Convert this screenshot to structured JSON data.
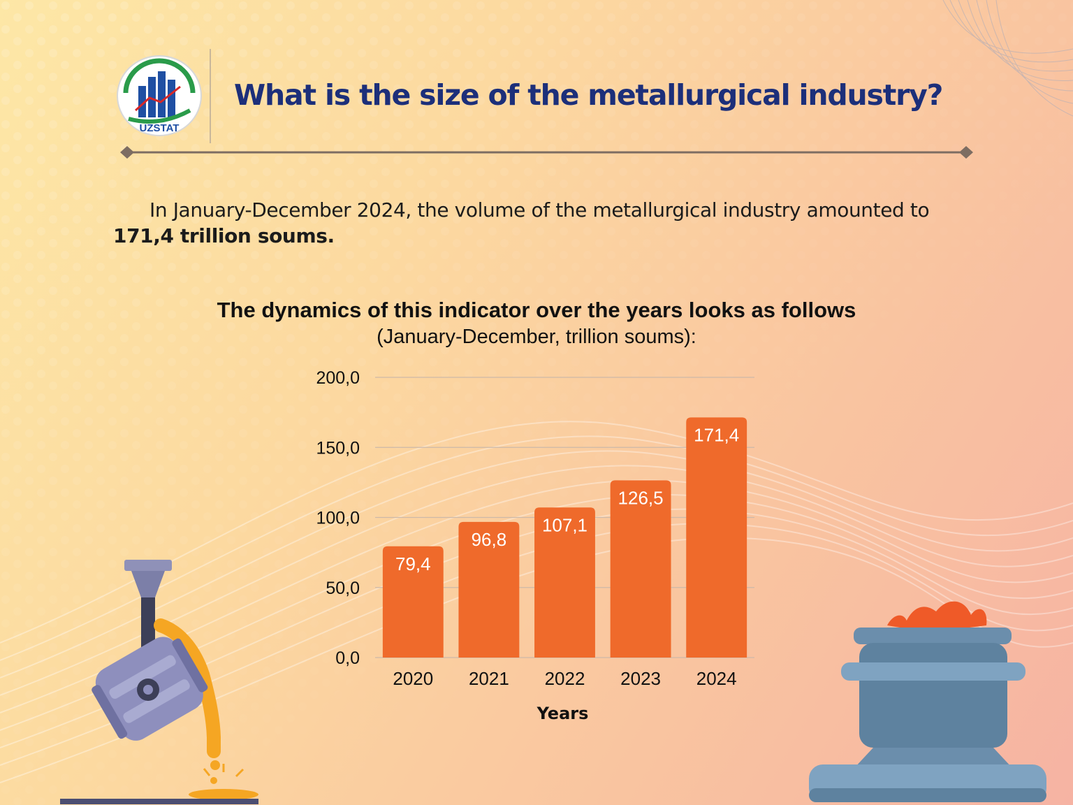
{
  "header": {
    "logo_text": "UZSTAT",
    "title": "What is the size of the metallurgical industry?"
  },
  "intro": {
    "text": "In January-December 2024, the volume of the metallurgical industry amounted to ",
    "highlight": "171,4 trillion soums."
  },
  "chart_data": {
    "type": "bar",
    "title": "The dynamics of this indicator over the years looks as follows",
    "subtitle": "(January-December, trillion soums):",
    "categories": [
      "2020",
      "2021",
      "2022",
      "2023",
      "2024"
    ],
    "values": [
      79.4,
      96.8,
      107.1,
      126.5,
      171.4
    ],
    "value_labels": [
      "79,4",
      "96,8",
      "107,1",
      "126,5",
      "171,4"
    ],
    "xlabel": "Years",
    "ylabel": "",
    "ylim": [
      0,
      200
    ],
    "yticks": [
      0,
      50,
      100,
      150,
      200
    ],
    "ytick_labels": [
      "0,0",
      "50,0",
      "100,0",
      "150,0",
      "200,0"
    ],
    "grid": true,
    "bar_color": "#ef6a2b",
    "label_color": "#ffffff"
  },
  "colors": {
    "title": "#1c2f7a",
    "accent": "#ef6a2b",
    "divider": "#7d6d62"
  }
}
